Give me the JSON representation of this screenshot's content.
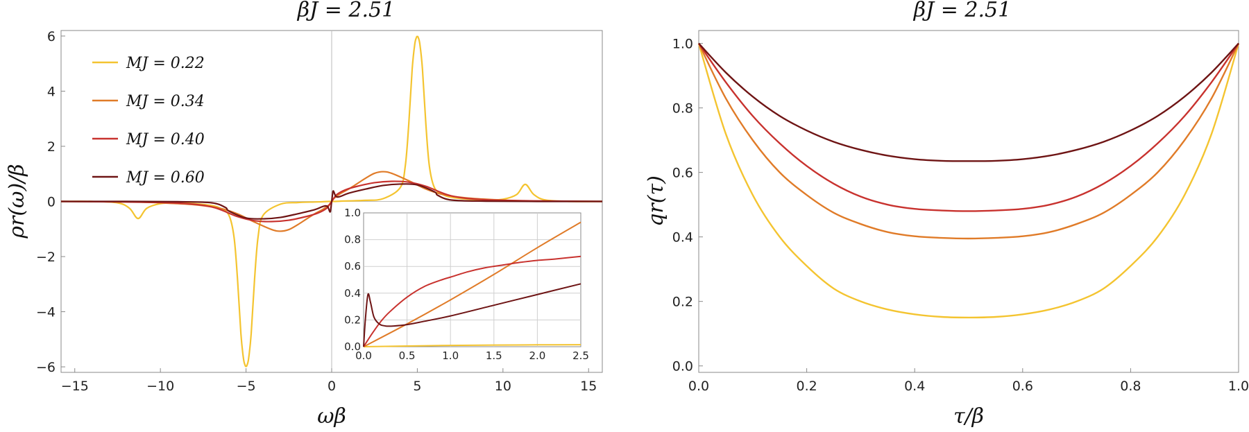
{
  "colors": [
    "#F4C430",
    "#E07B28",
    "#C8322E",
    "#6E1414"
  ],
  "chart_data": [
    {
      "type": "line",
      "title": "βJ = 2.51",
      "xlabel": "ωβ",
      "ylabel": "ρr(ω)/β",
      "xlim": [
        -15.8,
        15.8
      ],
      "ylim": [
        -6.2,
        6.2
      ],
      "xticks": [
        -15,
        -10,
        -5,
        0,
        5,
        10,
        15
      ],
      "yticks": [
        -6,
        -4,
        -2,
        0,
        2,
        4,
        6
      ],
      "legend_position": "top-left",
      "series": [
        {
          "name": "MJ = 0.22",
          "x": [
            -15.8,
            -14,
            -12.5,
            -11.8,
            -11.3,
            -10.8,
            -10,
            -9,
            -8,
            -7,
            -6.5,
            -6,
            -5.7,
            -5.5,
            -5.3,
            -5.15,
            -5.05,
            -5,
            -4.95,
            -4.85,
            -4.7,
            -4.5,
            -4.3,
            -4,
            -3,
            -2,
            -1,
            -0.5,
            -0.15,
            0,
            0.15,
            0.5,
            1,
            2,
            3,
            4,
            4.3,
            4.5,
            4.7,
            4.85,
            4.95,
            5,
            5.05,
            5.15,
            5.3,
            5.5,
            5.7,
            6,
            6.5,
            7,
            8,
            9,
            10,
            10.8,
            11.3,
            11.8,
            12.5,
            14,
            15.8
          ],
          "y": [
            0,
            0,
            -0.05,
            -0.25,
            -0.62,
            -0.25,
            -0.08,
            -0.05,
            -0.08,
            -0.15,
            -0.25,
            -0.5,
            -1.3,
            -2.8,
            -4.8,
            -5.7,
            -5.95,
            -5.98,
            -5.95,
            -5.7,
            -4.8,
            -2.8,
            -1.3,
            -0.5,
            -0.1,
            -0.04,
            -0.02,
            -0.01,
            0,
            0,
            0,
            0.01,
            0.02,
            0.04,
            0.1,
            0.5,
            1.3,
            2.8,
            4.8,
            5.7,
            5.95,
            5.98,
            5.95,
            5.7,
            4.8,
            2.8,
            1.3,
            0.5,
            0.25,
            0.15,
            0.08,
            0.05,
            0.08,
            0.25,
            0.62,
            0.25,
            0.05,
            0,
            0
          ]
        },
        {
          "name": "MJ = 0.34",
          "x": [
            -15.8,
            -12,
            -10,
            -8,
            -6.5,
            -5.5,
            -4.5,
            -3.5,
            -3,
            -2.5,
            -2,
            -1.5,
            -1,
            -0.5,
            -0.15,
            0,
            0.15,
            0.5,
            1,
            1.5,
            2,
            2.5,
            3,
            3.5,
            4.5,
            5.5,
            6.5,
            8,
            10,
            12,
            15.8
          ],
          "y": [
            0,
            -0.01,
            -0.05,
            -0.12,
            -0.25,
            -0.45,
            -0.75,
            -1.02,
            -1.08,
            -1.02,
            -0.85,
            -0.65,
            -0.45,
            -0.28,
            -0.12,
            0,
            0.12,
            0.28,
            0.45,
            0.65,
            0.85,
            1.02,
            1.08,
            1.02,
            0.75,
            0.45,
            0.25,
            0.12,
            0.05,
            0.01,
            0
          ]
        },
        {
          "name": "MJ = 0.40",
          "x": [
            -15.8,
            -12,
            -9,
            -7,
            -5.5,
            -4.5,
            -3.5,
            -2.5,
            -1.5,
            -0.8,
            -0.3,
            -0.1,
            0,
            0.1,
            0.3,
            0.8,
            1.5,
            2.5,
            3.5,
            4.5,
            5.5,
            7,
            9,
            12,
            15.8
          ],
          "y": [
            0,
            -0.02,
            -0.06,
            -0.2,
            -0.55,
            -0.7,
            -0.73,
            -0.68,
            -0.55,
            -0.42,
            -0.25,
            -0.09,
            0,
            0.09,
            0.25,
            0.42,
            0.55,
            0.68,
            0.73,
            0.7,
            0.55,
            0.2,
            0.06,
            0.02,
            0
          ]
        },
        {
          "name": "MJ = 0.60",
          "x": [
            -15.8,
            -12,
            -9,
            -7,
            -6.2,
            -6,
            -5,
            -4,
            -3,
            -2,
            -1,
            -0.5,
            -0.25,
            -0.1,
            -0.05,
            0,
            0.05,
            0.1,
            0.25,
            0.5,
            1,
            2,
            3,
            4,
            5,
            6,
            6.2,
            7,
            9,
            12,
            15.8
          ],
          "y": [
            0,
            0,
            -0.01,
            -0.05,
            -0.22,
            -0.35,
            -0.6,
            -0.63,
            -0.58,
            -0.45,
            -0.3,
            -0.18,
            -0.18,
            -0.38,
            -0.25,
            0,
            0.25,
            0.38,
            0.18,
            0.18,
            0.3,
            0.45,
            0.58,
            0.63,
            0.6,
            0.35,
            0.22,
            0.05,
            0.01,
            0,
            0
          ]
        }
      ],
      "inset": {
        "xlim": [
          0,
          2.5
        ],
        "ylim": [
          0,
          1.0
        ],
        "xticks": [
          0.0,
          0.5,
          1.0,
          1.5,
          2.0,
          2.5
        ],
        "yticks": [
          0.0,
          0.2,
          0.4,
          0.6,
          0.8,
          1.0
        ],
        "xtick_labels": [
          "0.0",
          "0.5",
          "1.0",
          "1.5",
          "2.0",
          "2.5"
        ],
        "ytick_labels": [
          "0.0",
          "0.2",
          "0.4",
          "0.6",
          "0.8",
          "1.0"
        ],
        "grid": true,
        "series": [
          {
            "x": [
              0,
              0.5,
              1,
              1.5,
              2,
              2.5
            ],
            "y": [
              0,
              0.005,
              0.01,
              0.012,
              0.014,
              0.015
            ]
          },
          {
            "x": [
              0,
              0.5,
              1,
              1.5,
              2,
              2.5
            ],
            "y": [
              0,
              0.17,
              0.35,
              0.54,
              0.74,
              0.93
            ]
          },
          {
            "x": [
              0,
              0.1,
              0.2,
              0.3,
              0.5,
              0.7,
              0.9,
              1.0,
              1.2,
              1.4,
              1.6,
              1.8,
              2.0,
              2.2,
              2.5
            ],
            "y": [
              0,
              0.1,
              0.19,
              0.26,
              0.37,
              0.45,
              0.5,
              0.52,
              0.56,
              0.59,
              0.61,
              0.63,
              0.645,
              0.655,
              0.675
            ]
          },
          {
            "x": [
              0,
              0.02,
              0.05,
              0.08,
              0.12,
              0.18,
              0.25,
              0.35,
              0.5,
              0.7,
              1.0,
              1.5,
              2.0,
              2.5
            ],
            "y": [
              0,
              0.2,
              0.39,
              0.33,
              0.22,
              0.17,
              0.155,
              0.155,
              0.165,
              0.19,
              0.23,
              0.31,
              0.39,
              0.47
            ]
          }
        ]
      }
    },
    {
      "type": "line",
      "title": "βJ = 2.51",
      "xlabel": "τ/β",
      "ylabel": "qr(τ)",
      "xlim": [
        0,
        1
      ],
      "ylim": [
        -0.02,
        1.04
      ],
      "xticks": [
        0.0,
        0.2,
        0.4,
        0.6,
        0.8,
        1.0
      ],
      "yticks": [
        0.0,
        0.2,
        0.4,
        0.6,
        0.8,
        1.0
      ],
      "xtick_labels": [
        "0.0",
        "0.2",
        "0.4",
        "0.6",
        "0.8",
        "1.0"
      ],
      "ytick_labels": [
        "0.0",
        "0.2",
        "0.4",
        "0.6",
        "0.8",
        "1.0"
      ],
      "series": [
        {
          "min_value": 0.15,
          "x": [
            0,
            0.05,
            0.1,
            0.15,
            0.2,
            0.25,
            0.3,
            0.35,
            0.4,
            0.45,
            0.5,
            0.55,
            0.6,
            0.65,
            0.7,
            0.75,
            0.8,
            0.85,
            0.9,
            0.95,
            1.0
          ],
          "y": [
            1.0,
            0.72,
            0.53,
            0.4,
            0.31,
            0.24,
            0.2,
            0.175,
            0.16,
            0.152,
            0.15,
            0.152,
            0.16,
            0.175,
            0.2,
            0.24,
            0.31,
            0.4,
            0.53,
            0.72,
            1.0
          ]
        },
        {
          "min_value": 0.395,
          "x": [
            0,
            0.05,
            0.1,
            0.15,
            0.2,
            0.25,
            0.3,
            0.35,
            0.4,
            0.45,
            0.5,
            0.55,
            0.6,
            0.65,
            0.7,
            0.75,
            0.8,
            0.85,
            0.9,
            0.95,
            1.0
          ],
          "y": [
            1.0,
            0.83,
            0.7,
            0.6,
            0.53,
            0.475,
            0.44,
            0.415,
            0.402,
            0.397,
            0.395,
            0.397,
            0.402,
            0.415,
            0.44,
            0.475,
            0.53,
            0.6,
            0.7,
            0.83,
            1.0
          ]
        },
        {
          "min_value": 0.48,
          "x": [
            0,
            0.05,
            0.1,
            0.15,
            0.2,
            0.25,
            0.3,
            0.35,
            0.4,
            0.45,
            0.5,
            0.55,
            0.6,
            0.65,
            0.7,
            0.75,
            0.8,
            0.85,
            0.9,
            0.95,
            1.0
          ],
          "y": [
            1.0,
            0.88,
            0.775,
            0.69,
            0.62,
            0.565,
            0.525,
            0.5,
            0.487,
            0.482,
            0.48,
            0.482,
            0.487,
            0.5,
            0.525,
            0.565,
            0.62,
            0.69,
            0.775,
            0.88,
            1.0
          ]
        },
        {
          "min_value": 0.635,
          "x": [
            0,
            0.05,
            0.1,
            0.15,
            0.2,
            0.25,
            0.3,
            0.35,
            0.4,
            0.45,
            0.5,
            0.55,
            0.6,
            0.65,
            0.7,
            0.75,
            0.8,
            0.85,
            0.9,
            0.95,
            1.0
          ],
          "y": [
            1.0,
            0.91,
            0.835,
            0.775,
            0.73,
            0.695,
            0.67,
            0.652,
            0.641,
            0.636,
            0.635,
            0.636,
            0.641,
            0.652,
            0.67,
            0.695,
            0.73,
            0.775,
            0.835,
            0.91,
            1.0
          ]
        }
      ]
    }
  ]
}
